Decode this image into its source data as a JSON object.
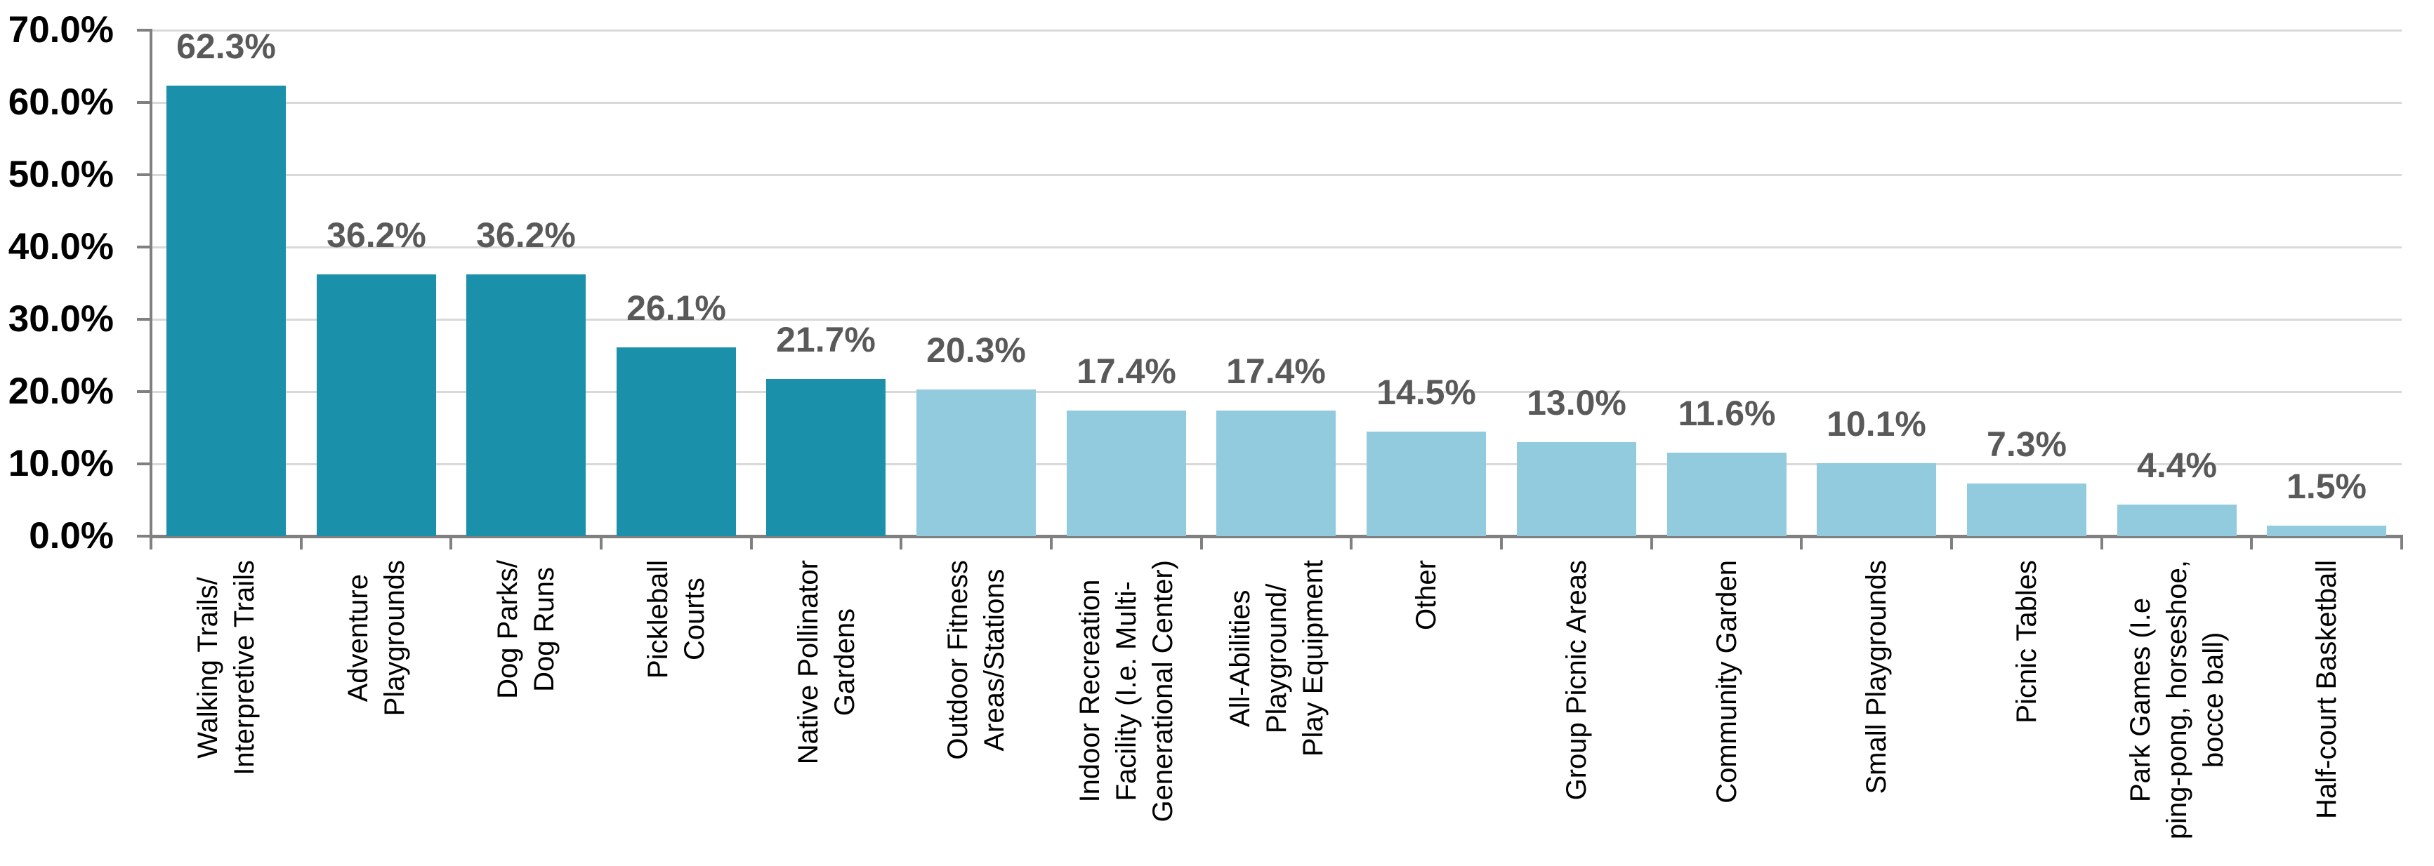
{
  "chart_data": {
    "type": "bar",
    "title": "",
    "xlabel": "",
    "ylabel": "",
    "categories": [
      "Walking Trails/\nInterpretive Trails",
      "Adventure\nPlaygrounds",
      "Dog Parks/\nDog Runs",
      "Pickleball\nCourts",
      "Native Pollinator\nGardens",
      "Outdoor Fitness\nAreas/Stations",
      "Indoor Recreation\nFacility (I.e. Multi-\nGenerational Center)",
      "All-Abilities\nPlayground/\nPlay Equipment",
      "Other",
      "Group Picnic Areas",
      "Community Garden",
      "Small Playgrounds",
      "Picnic Tables",
      "Park Games (I.e\nping-pong, horseshoe,\nbocce ball)",
      "Half-court Basketball"
    ],
    "values": [
      62.3,
      36.2,
      36.2,
      26.1,
      21.7,
      20.3,
      17.4,
      17.4,
      14.5,
      13.0,
      11.6,
      10.1,
      7.3,
      4.4,
      1.5
    ],
    "value_labels": [
      "62.3%",
      "36.2%",
      "36.2%",
      "26.1%",
      "21.7%",
      "20.3%",
      "17.4%",
      "17.4%",
      "14.5%",
      "13.0%",
      "11.6%",
      "10.1%",
      "7.3%",
      "4.4%",
      "1.5%"
    ],
    "ylim": [
      0,
      70
    ],
    "y_tick_step": 10,
    "y_tick_labels": [
      "0.0%",
      "10.0%",
      "20.0%",
      "30.0%",
      "40.0%",
      "50.0%",
      "60.0%",
      "70.0%"
    ],
    "grid": true,
    "legend_position": "none",
    "colors": {
      "bar_primary": "#1A90AB",
      "bar_secondary": "#92CBDE",
      "primary_bar_count": 5,
      "value_label": "#595959",
      "tick_label": "#000000",
      "gridline": "#D9D9D9",
      "axis_line": "#808080"
    }
  }
}
